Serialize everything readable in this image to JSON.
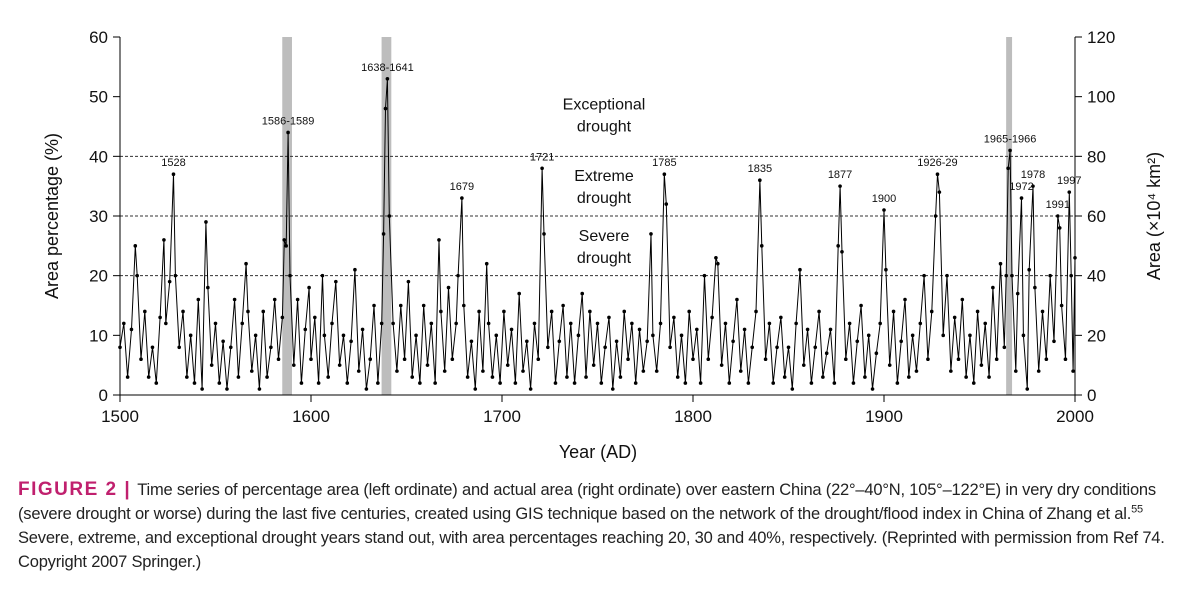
{
  "chart_data": {
    "type": "line",
    "y_label": "Area percentage (%)",
    "y2_label": "Area (×10⁴ km²)",
    "x_label": "Year (AD)",
    "xlim": [
      1500,
      2000
    ],
    "xticks": [
      1500,
      1600,
      1700,
      1800,
      1900,
      2000
    ],
    "ylim": [
      0,
      60
    ],
    "yticks": [
      0,
      10,
      20,
      30,
      40,
      50,
      60
    ],
    "y2lim": [
      0,
      120
    ],
    "y2ticks": [
      0,
      20,
      40,
      60,
      80,
      100,
      120
    ],
    "thresholds": [
      20,
      30,
      40
    ],
    "zone_labels": [
      {
        "lines": [
          "Severe",
          "drought"
        ],
        "y": 25
      },
      {
        "lines": [
          "Extreme",
          "drought"
        ],
        "y": 35
      },
      {
        "lines": [
          "Exceptional",
          "drought"
        ],
        "y": 47
      }
    ],
    "highlights": [
      [
        1586,
        1589
      ],
      [
        1638,
        1641
      ],
      [
        1965,
        1966
      ]
    ],
    "color": "#000000",
    "x": [
      1500,
      1502,
      1504,
      1506,
      1508,
      1509,
      1511,
      1513,
      1515,
      1517,
      1519,
      1521,
      1523,
      1524,
      1526,
      1528,
      1529,
      1531,
      1533,
      1535,
      1537,
      1539,
      1541,
      1543,
      1545,
      1546,
      1548,
      1550,
      1552,
      1554,
      1556,
      1558,
      1560,
      1562,
      1564,
      1566,
      1567,
      1569,
      1571,
      1573,
      1575,
      1577,
      1579,
      1581,
      1583,
      1585,
      1586,
      1587,
      1588,
      1589,
      1591,
      1593,
      1595,
      1597,
      1599,
      1600,
      1602,
      1604,
      1606,
      1607,
      1609,
      1611,
      1613,
      1615,
      1617,
      1619,
      1621,
      1623,
      1625,
      1627,
      1629,
      1631,
      1633,
      1635,
      1637,
      1638,
      1639,
      1640,
      1641,
      1643,
      1645,
      1647,
      1649,
      1651,
      1653,
      1655,
      1657,
      1659,
      1661,
      1663,
      1665,
      1667,
      1668,
      1670,
      1672,
      1674,
      1676,
      1677,
      1679,
      1680,
      1682,
      1684,
      1686,
      1688,
      1690,
      1692,
      1693,
      1695,
      1697,
      1699,
      1701,
      1703,
      1705,
      1707,
      1709,
      1711,
      1713,
      1715,
      1717,
      1719,
      1721,
      1722,
      1724,
      1726,
      1728,
      1730,
      1732,
      1734,
      1736,
      1738,
      1740,
      1742,
      1744,
      1746,
      1748,
      1750,
      1752,
      1754,
      1756,
      1758,
      1760,
      1762,
      1764,
      1766,
      1768,
      1770,
      1772,
      1774,
      1776,
      1778,
      1779,
      1781,
      1783,
      1785,
      1786,
      1788,
      1790,
      1792,
      1794,
      1796,
      1798,
      1800,
      1802,
      1804,
      1806,
      1808,
      1810,
      1812,
      1813,
      1815,
      1817,
      1819,
      1821,
      1823,
      1825,
      1827,
      1829,
      1831,
      1833,
      1835,
      1836,
      1838,
      1840,
      1842,
      1844,
      1846,
      1848,
      1850,
      1852,
      1854,
      1856,
      1858,
      1860,
      1862,
      1864,
      1866,
      1868,
      1870,
      1872,
      1874,
      1876,
      1877,
      1878,
      1880,
      1882,
      1884,
      1886,
      1888,
      1890,
      1892,
      1894,
      1896,
      1898,
      1900,
      1901,
      1903,
      1905,
      1907,
      1909,
      1911,
      1913,
      1915,
      1917,
      1919,
      1921,
      1923,
      1925,
      1927,
      1928,
      1929,
      1931,
      1933,
      1935,
      1937,
      1939,
      1941,
      1943,
      1945,
      1947,
      1949,
      1951,
      1953,
      1955,
      1957,
      1959,
      1961,
      1963,
      1964,
      1965,
      1966,
      1967,
      1969,
      1970,
      1972,
      1973,
      1975,
      1976,
      1978,
      1979,
      1981,
      1983,
      1985,
      1987,
      1989,
      1991,
      1992,
      1993,
      1995,
      1997,
      1998,
      1999,
      2000
    ],
    "values": [
      8,
      12,
      3,
      11,
      25,
      20,
      6,
      14,
      3,
      8,
      2,
      13,
      26,
      12,
      19,
      37,
      20,
      8,
      14,
      3,
      10,
      2,
      16,
      1,
      29,
      18,
      5,
      12,
      2,
      9,
      1,
      8,
      16,
      3,
      12,
      22,
      14,
      4,
      10,
      1,
      14,
      3,
      8,
      16,
      6,
      13,
      26,
      25,
      44,
      20,
      5,
      16,
      2,
      11,
      18,
      6,
      13,
      2,
      20,
      10,
      3,
      12,
      19,
      5,
      10,
      2,
      9,
      21,
      4,
      11,
      1,
      6,
      15,
      2,
      12,
      27,
      48,
      53,
      30,
      12,
      4,
      15,
      6,
      19,
      3,
      10,
      2,
      15,
      5,
      12,
      2,
      26,
      14,
      4,
      18,
      6,
      12,
      20,
      33,
      15,
      3,
      9,
      1,
      14,
      4,
      22,
      12,
      3,
      10,
      2,
      14,
      5,
      11,
      2,
      17,
      4,
      9,
      1,
      12,
      6,
      38,
      27,
      8,
      14,
      2,
      9,
      15,
      3,
      12,
      2,
      10,
      17,
      3,
      14,
      5,
      12,
      2,
      8,
      13,
      1,
      9,
      3,
      14,
      6,
      12,
      2,
      11,
      4,
      9,
      27,
      10,
      4,
      12,
      37,
      32,
      8,
      13,
      3,
      10,
      2,
      14,
      6,
      11,
      2,
      20,
      6,
      13,
      23,
      22,
      5,
      12,
      2,
      9,
      16,
      4,
      11,
      2,
      8,
      14,
      36,
      25,
      6,
      12,
      2,
      8,
      13,
      3,
      8,
      1,
      12,
      21,
      5,
      11,
      2,
      8,
      14,
      3,
      7,
      11,
      2,
      25,
      35,
      24,
      6,
      12,
      2,
      9,
      15,
      3,
      10,
      1,
      7,
      12,
      31,
      21,
      5,
      14,
      2,
      9,
      16,
      3,
      10,
      4,
      12,
      20,
      6,
      14,
      30,
      37,
      34,
      10,
      20,
      4,
      13,
      6,
      16,
      3,
      10,
      2,
      14,
      5,
      12,
      3,
      18,
      6,
      22,
      8,
      20,
      38,
      41,
      20,
      4,
      17,
      33,
      10,
      1,
      21,
      35,
      18,
      4,
      14,
      6,
      20,
      9,
      30,
      28,
      15,
      6,
      34,
      20,
      4,
      23
    ],
    "annotations": [
      {
        "label": "1528",
        "x": 1528
      },
      {
        "label": "1586-1589",
        "x": 1588
      },
      {
        "label": "1638-1641",
        "x": 1640
      },
      {
        "label": "1679",
        "x": 1679
      },
      {
        "label": "1721",
        "x": 1721
      },
      {
        "label": "1785",
        "x": 1785
      },
      {
        "label": "1835",
        "x": 1835
      },
      {
        "label": "1877",
        "x": 1877
      },
      {
        "label": "1900",
        "x": 1900
      },
      {
        "label": "1926-29",
        "x": 1928
      },
      {
        "label": "1965-1966",
        "x": 1966
      },
      {
        "label": "1972",
        "x": 1972
      },
      {
        "label": "1978",
        "x": 1978
      },
      {
        "label": "1991",
        "x": 1991
      },
      {
        "label": "1997",
        "x": 1997
      }
    ]
  },
  "caption": {
    "label": "FIGURE 2 |",
    "text": "Time series of percentage area (left ordinate) and actual area (right ordinate) over eastern China (22°–40°N, 105°–122°E) in very dry conditions (severe drought or worse) during the last five centuries, created using GIS technique based on the network of the drought/flood index in China of Zhang et al.",
    "ref": "55",
    "text2": "Severe, extreme, and exceptional drought years stand out, with area percentages reaching 20, 30 and 40%, respectively. (Reprinted with permission from Ref 74. Copyright 2007 Springer.)"
  }
}
